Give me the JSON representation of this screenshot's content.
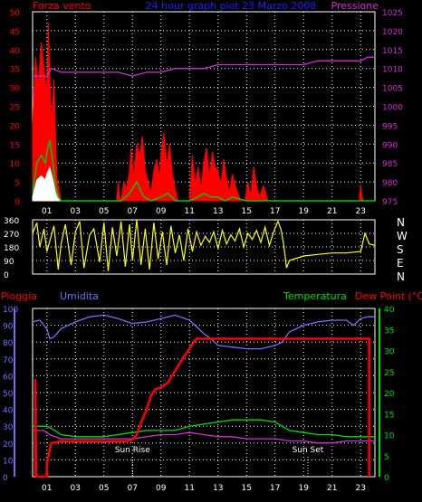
{
  "colors": {
    "wind": "#ff0000",
    "gust": "#00c800",
    "gust_white": "#ffffff",
    "pressure": "#d030d0",
    "title": "#2020ff",
    "direction": "#ffff00",
    "rain": "#ff0000",
    "humidity": "#7070ff",
    "temperature": "#00e000",
    "dewpoint": "#d030d0",
    "grid": "#ffffff",
    "axis_left_top": "#ff0000",
    "axis_right_top": "#d030d0",
    "axis_left_bottom": "#7070ff",
    "axis_right_bottom": "#00e000",
    "white": "#ffffff"
  },
  "chart_data": [
    {
      "type": "line",
      "title": "24 hour graph plot  23 Marzo 2008",
      "ylabel": "Forza vento",
      "y2label": "Pressione",
      "ylim": [
        0,
        50
      ],
      "y2lim": [
        975,
        1025
      ],
      "yticks": [
        "0",
        "5",
        "10",
        "15",
        "20",
        "25",
        "30",
        "35",
        "40",
        "45",
        "50"
      ],
      "y2ticks": [
        "975",
        "980",
        "985",
        "990",
        "995",
        "1000",
        "1005",
        "1010",
        "1015",
        "1020",
        "1025"
      ],
      "xticks": [
        "01",
        "03",
        "05",
        "07",
        "09",
        "11",
        "13",
        "15",
        "17",
        "19",
        "21",
        "23"
      ],
      "grid": true,
      "series": [
        {
          "key": "wind",
          "x": [
            0,
            0.2,
            0.4,
            0.6,
            0.8,
            1.0,
            1.1,
            1.3,
            1.5,
            1.7,
            2.0,
            3,
            4,
            5,
            5.9,
            6.0,
            6.1,
            6.2,
            6.4,
            6.6,
            6.8,
            6.9,
            7.1,
            7.3,
            7.5,
            7.7,
            7.9,
            8.1,
            8.3,
            8.5,
            8.7,
            8.9,
            9.0,
            9.2,
            9.4,
            9.6,
            9.8,
            10,
            10.2,
            10.5,
            11,
            11.2,
            11.4,
            11.6,
            11.8,
            12,
            12.2,
            12.4,
            12.6,
            12.8,
            13,
            13.2,
            13.4,
            13.6,
            13.8,
            14,
            14.3,
            14.6,
            14.9,
            15.1,
            15.3,
            15.5,
            15.7,
            15.9,
            16.2,
            16.5,
            16.8,
            17,
            17.5,
            18,
            19,
            20,
            21,
            22,
            22.9,
            23.0,
            23.1,
            23.2,
            23.5
          ],
          "y": [
            20,
            38,
            30,
            42,
            35,
            28,
            47,
            20,
            32,
            6,
            0,
            0,
            0,
            0,
            0,
            5,
            1,
            0,
            5,
            3,
            8,
            14,
            6,
            15,
            12,
            17,
            8,
            5,
            2,
            8,
            11,
            6,
            12,
            18,
            9,
            15,
            7,
            3,
            0,
            0,
            0,
            12,
            4,
            9,
            3,
            10,
            14,
            6,
            13,
            9,
            8,
            4,
            11,
            6,
            2,
            7,
            3,
            0,
            0,
            5,
            1,
            9,
            4,
            1,
            4,
            0,
            0,
            0,
            0,
            0,
            0,
            0,
            0,
            0,
            0,
            4,
            1,
            0,
            0
          ]
        },
        {
          "key": "gust",
          "x": [
            0,
            0.3,
            0.6,
            0.9,
            1.0,
            1.2,
            1.4,
            1.6,
            1.8,
            2.0,
            4,
            5.9,
            6.2,
            6.8,
            7.3,
            7.8,
            8.3,
            9,
            9.5,
            10,
            11,
            11.6,
            12,
            12.5,
            13,
            13.5,
            14,
            15,
            15.5,
            16,
            16.5,
            17,
            23,
            24
          ],
          "y": [
            2,
            10,
            12,
            10,
            13,
            16,
            11,
            4,
            1,
            0,
            0,
            0,
            0,
            2,
            5,
            1,
            0,
            1,
            2,
            0,
            0,
            1,
            2,
            1,
            1,
            0,
            1,
            0,
            0,
            0,
            0,
            0,
            0,
            0
          ]
        },
        {
          "key": "pressure",
          "x": [
            0,
            1,
            1.3,
            2,
            4,
            6,
            7,
            8,
            9,
            10,
            11,
            12,
            13,
            14,
            15,
            16,
            17,
            18,
            19,
            20,
            21,
            22,
            23,
            23.5,
            24
          ],
          "y": [
            1008,
            1008,
            1010,
            1009,
            1009,
            1009,
            1008,
            1009,
            1009,
            1010,
            1010,
            1010,
            1011,
            1011,
            1011,
            1011,
            1011,
            1011,
            1011,
            1012,
            1012,
            1012,
            1012,
            1013,
            1013
          ]
        }
      ]
    },
    {
      "type": "line",
      "ylabel_ticks": [
        "0",
        "90",
        "180",
        "270",
        "360"
      ],
      "ylim": [
        0,
        360
      ],
      "direction_labels": [
        "N",
        "W",
        "S",
        "E",
        "N"
      ],
      "series": [
        {
          "key": "direction",
          "x": [
            0,
            0.3,
            0.5,
            0.8,
            1,
            1.5,
            1.8,
            2,
            2.3,
            2.7,
            3.0,
            3.3,
            3.6,
            4,
            4.3,
            4.7,
            5,
            5.3,
            5.6,
            5.9,
            6.2,
            6.5,
            6.8,
            7,
            7.3,
            7.6,
            7.9,
            8.2,
            8.5,
            8.8,
            9.1,
            9.4,
            9.7,
            10,
            10.3,
            10.6,
            10.9,
            11.2,
            11.5,
            11.8,
            12.1,
            12.4,
            12.7,
            13,
            13.3,
            13.6,
            13.9,
            14.2,
            14.5,
            14.8,
            15.1,
            15.4,
            15.7,
            16,
            16.3,
            16.6,
            16.9,
            17.2,
            17.4,
            17.6,
            17.8,
            18,
            19,
            20,
            21,
            22,
            23,
            23.3,
            23.6,
            24
          ],
          "y": [
            270,
            340,
            180,
            300,
            150,
            320,
            30,
            200,
            330,
            60,
            280,
            350,
            40,
            260,
            300,
            80,
            340,
            20,
            310,
            120,
            350,
            50,
            330,
            90,
            360,
            60,
            300,
            30,
            340,
            100,
            280,
            60,
            320,
            140,
            260,
            90,
            300,
            150,
            280,
            190,
            250,
            210,
            280,
            170,
            290,
            200,
            260,
            220,
            300,
            180,
            270,
            230,
            290,
            210,
            310,
            190,
            280,
            350,
            300,
            200,
            40,
            90,
            120,
            130,
            140,
            140,
            150,
            270,
            200,
            190
          ]
        }
      ]
    },
    {
      "type": "line",
      "labels": {
        "rain": "Pioggia",
        "humidity": "Umidita",
        "temperature": "Temperatura",
        "dewpoint": "Dew Point (°C)"
      },
      "ylim": [
        0,
        100
      ],
      "y2lim": [
        0,
        40
      ],
      "yticks": [
        "0",
        "10",
        "20",
        "30",
        "40",
        "50",
        "60",
        "70",
        "80",
        "90",
        "100"
      ],
      "y2ticks": [
        "0",
        "5",
        "10",
        "15",
        "20",
        "25",
        "30",
        "35",
        "40"
      ],
      "xticks": [
        "01",
        "03",
        "05",
        "07",
        "09",
        "11",
        "13",
        "15",
        "17",
        "19",
        "21",
        "23"
      ],
      "annotations": [
        {
          "text": "Sun Rise",
          "x": 7
        },
        {
          "text": "Sun Set",
          "x": 19.3
        }
      ],
      "series": [
        {
          "key": "rain",
          "x": [
            0.2,
            0.2,
            0.25,
            0.3,
            1.0,
            1.0,
            1.3,
            2,
            3,
            4,
            5,
            6,
            6.5,
            7,
            7.3,
            7.6,
            8,
            8.3,
            8.6,
            9,
            9.5,
            10,
            10.5,
            11,
            11.3,
            11.5,
            12,
            14,
            16,
            18,
            20,
            22,
            23,
            23.5,
            23.6,
            23.6
          ],
          "y": [
            0,
            58,
            2,
            0,
            0,
            8,
            20,
            21,
            21,
            21,
            21,
            21,
            21,
            22,
            25,
            32,
            40,
            48,
            52,
            53,
            56,
            63,
            70,
            76,
            80,
            82,
            82,
            82,
            82,
            82,
            82,
            82,
            82,
            82,
            82,
            0
          ]
        },
        {
          "key": "humidity",
          "x": [
            0,
            0.5,
            1,
            1.2,
            1.5,
            2,
            3,
            4,
            5,
            6,
            7,
            8,
            9,
            10,
            11,
            12,
            12.5,
            13,
            14,
            15,
            16,
            17,
            17.5,
            18,
            19,
            20,
            21,
            22,
            22.5,
            23,
            23.5,
            24
          ],
          "y": [
            92,
            93,
            88,
            82,
            83,
            88,
            92,
            95,
            96,
            94,
            91,
            92,
            94,
            96,
            93,
            85,
            82,
            78,
            77,
            76,
            76,
            78,
            80,
            86,
            90,
            92,
            93,
            93,
            90,
            94,
            95,
            95
          ]
        },
        {
          "key": "temperature",
          "x": [
            0,
            0.5,
            1,
            1.3,
            2,
            3,
            4,
            5,
            6,
            7,
            8,
            9,
            10,
            11,
            12,
            13,
            14,
            15,
            16,
            17,
            18,
            19,
            20,
            21,
            22,
            23,
            24
          ],
          "y": [
            12,
            12,
            12,
            11.5,
            10,
            9.5,
            9.5,
            9.5,
            10,
            10.5,
            11,
            11,
            11,
            12,
            12.5,
            13,
            13.5,
            13.5,
            13.5,
            13,
            11,
            10.5,
            10,
            10,
            9.5,
            9.5,
            9.5
          ]
        },
        {
          "key": "dewpoint",
          "x": [
            0,
            0.3,
            0.8,
            1.2,
            2,
            3,
            4,
            5,
            6,
            7,
            8,
            9,
            10,
            11,
            12,
            13,
            14,
            15,
            16,
            17,
            18,
            19,
            20,
            21,
            22,
            23,
            24
          ],
          "y": [
            11,
            11,
            11,
            10,
            9,
            9,
            9,
            9,
            9,
            9,
            9.5,
            10,
            10,
            10.5,
            10,
            9.5,
            9.5,
            9,
            9,
            9,
            8.5,
            8.5,
            8,
            8,
            8.5,
            8.5,
            8.5
          ]
        }
      ]
    }
  ]
}
